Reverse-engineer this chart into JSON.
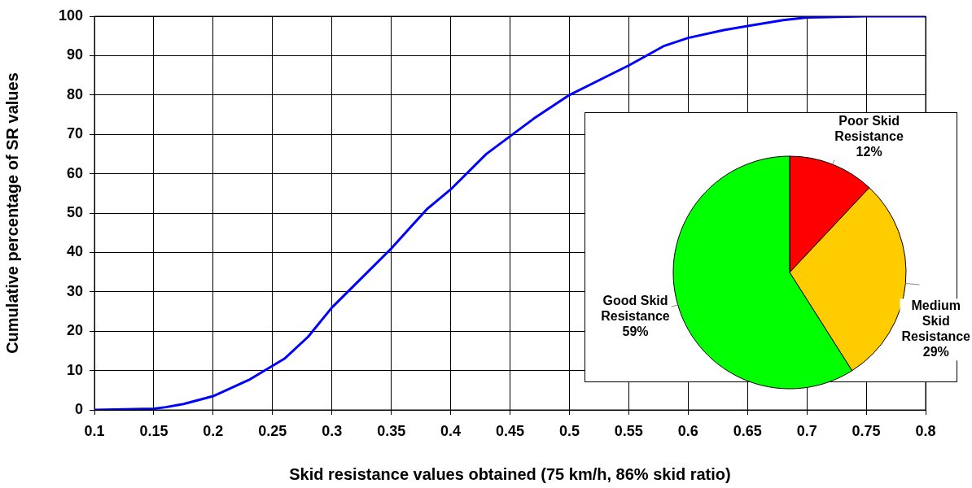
{
  "chart_data": [
    {
      "type": "line",
      "xlabel": "Skid resistance values obtained (75 km/h, 86% skid ratio)",
      "ylabel": "Cumulative percentage of SR values",
      "x": [
        0.1,
        0.15,
        0.16,
        0.175,
        0.2,
        0.23,
        0.26,
        0.28,
        0.3,
        0.32,
        0.35,
        0.38,
        0.4,
        0.43,
        0.45,
        0.47,
        0.5,
        0.53,
        0.55,
        0.58,
        0.6,
        0.63,
        0.65,
        0.68,
        0.7,
        0.75,
        0.8
      ],
      "values": [
        0,
        0.3,
        0.7,
        1.5,
        3.5,
        7.6,
        13,
        18.6,
        26,
        32,
        41,
        51,
        56,
        65,
        69.5,
        74,
        80,
        84.5,
        87.5,
        92.5,
        94.5,
        96.5,
        97.5,
        99,
        99.7,
        100,
        100
      ],
      "color": "#0000ff",
      "xlim": [
        0.1,
        0.8
      ],
      "xticks": [
        0.1,
        0.15,
        0.2,
        0.25,
        0.3,
        0.35,
        0.4,
        0.45,
        0.5,
        0.55,
        0.6,
        0.65,
        0.7,
        0.75,
        0.8
      ],
      "ylim": [
        0,
        100
      ],
      "yticks": [
        0,
        10,
        20,
        30,
        40,
        50,
        60,
        70,
        80,
        90,
        100
      ],
      "grid": true
    },
    {
      "type": "pie",
      "categories": [
        "Poor Skid Resistance",
        "Medium Skid Resistance",
        "Good Skid Resistance"
      ],
      "values": [
        12,
        29,
        59
      ],
      "colors": [
        "#ff0000",
        "#ffcc00",
        "#00ff00"
      ],
      "value_labels": [
        "12%",
        "29%",
        "59%"
      ]
    }
  ]
}
